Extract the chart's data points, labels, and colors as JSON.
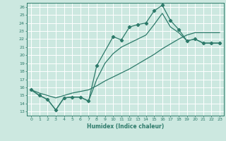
{
  "xlabel": "Humidex (Indice chaleur)",
  "bg_color": "#cce8e0",
  "line_color": "#2d7a6a",
  "grid_color": "#b0d8d0",
  "xlim": [
    -0.5,
    23.5
  ],
  "ylim": [
    12.5,
    26.5
  ],
  "xticks": [
    0,
    1,
    2,
    3,
    4,
    5,
    6,
    7,
    8,
    9,
    10,
    11,
    12,
    13,
    14,
    15,
    16,
    17,
    18,
    19,
    20,
    21,
    22,
    23
  ],
  "yticks": [
    13,
    14,
    15,
    16,
    17,
    18,
    19,
    20,
    21,
    22,
    23,
    24,
    25,
    26
  ],
  "line1_x": [
    0,
    1,
    2,
    3,
    4,
    5,
    6,
    7,
    8,
    10,
    11,
    12,
    13,
    14,
    15,
    16,
    17,
    18,
    19,
    20,
    21,
    22,
    23
  ],
  "line1_y": [
    15.7,
    15.0,
    14.5,
    13.2,
    14.7,
    14.8,
    14.8,
    14.3,
    18.7,
    22.3,
    21.9,
    23.5,
    23.8,
    24.0,
    25.5,
    26.2,
    24.3,
    23.2,
    21.8,
    22.0,
    21.5,
    21.5,
    21.5
  ],
  "line2_x": [
    0,
    1,
    2,
    3,
    4,
    5,
    6,
    7,
    8,
    9,
    10,
    11,
    12,
    13,
    14,
    15,
    16,
    17,
    18,
    19,
    20,
    21,
    22,
    23
  ],
  "line2_y": [
    15.7,
    15.3,
    15.0,
    14.7,
    15.0,
    15.3,
    15.5,
    15.7,
    16.2,
    16.8,
    17.3,
    17.8,
    18.3,
    18.9,
    19.5,
    20.1,
    20.8,
    21.4,
    22.0,
    22.5,
    22.8,
    22.8,
    22.8,
    22.8
  ],
  "line3_x": [
    0,
    1,
    2,
    3,
    4,
    5,
    6,
    7,
    8,
    9,
    10,
    11,
    12,
    13,
    14,
    15,
    16,
    17,
    18,
    19,
    20,
    21,
    22,
    23
  ],
  "line3_y": [
    15.7,
    15.0,
    14.5,
    13.2,
    14.7,
    14.8,
    14.8,
    14.3,
    17.0,
    19.0,
    20.2,
    21.0,
    21.5,
    22.0,
    22.5,
    23.8,
    25.2,
    23.5,
    22.8,
    21.8,
    22.0,
    21.5,
    21.5,
    21.5
  ]
}
